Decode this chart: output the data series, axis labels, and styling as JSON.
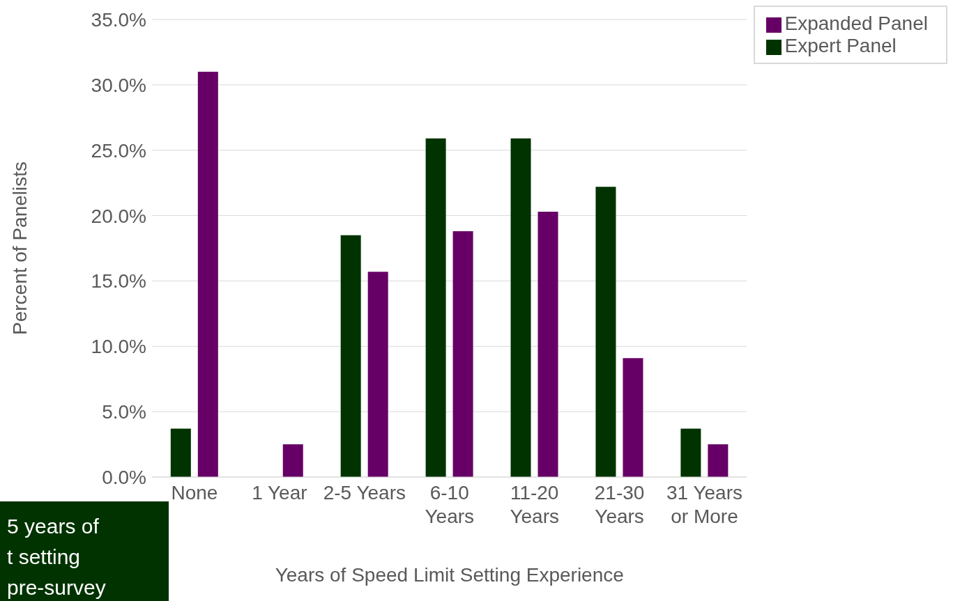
{
  "chart_data": {
    "type": "bar",
    "xlabel": "Years of Speed Limit Setting Experience",
    "ylabel": "Percent of Panelists",
    "categories": [
      "None",
      "1 Year",
      "2-5 Years",
      "6-10 Years",
      "11-20 Years",
      "21-30 Years",
      "31 Years or More"
    ],
    "series": [
      {
        "name": "Expert Panel",
        "color": "#003300",
        "values": [
          3.7,
          0,
          18.5,
          25.9,
          25.9,
          22.2,
          3.7
        ]
      },
      {
        "name": "Expanded Panel",
        "color": "#660066",
        "values": [
          31.0,
          2.5,
          15.7,
          18.8,
          20.3,
          9.1,
          2.5
        ]
      }
    ],
    "ylim": [
      0,
      35
    ],
    "yticks": [
      {
        "value": 0,
        "label": "0.0%"
      },
      {
        "value": 5,
        "label": "5.0%"
      },
      {
        "value": 10,
        "label": "10.0%"
      },
      {
        "value": 15,
        "label": "15.0%"
      },
      {
        "value": 20,
        "label": "20.0%"
      },
      {
        "value": 25,
        "label": "25.0%"
      },
      {
        "value": 30,
        "label": "30.0%"
      },
      {
        "value": 35,
        "label": "35.0%"
      }
    ],
    "grid": "y",
    "legend": "top right",
    "annotations": [
      "5 years of\nt setting\npre-survey"
    ]
  }
}
